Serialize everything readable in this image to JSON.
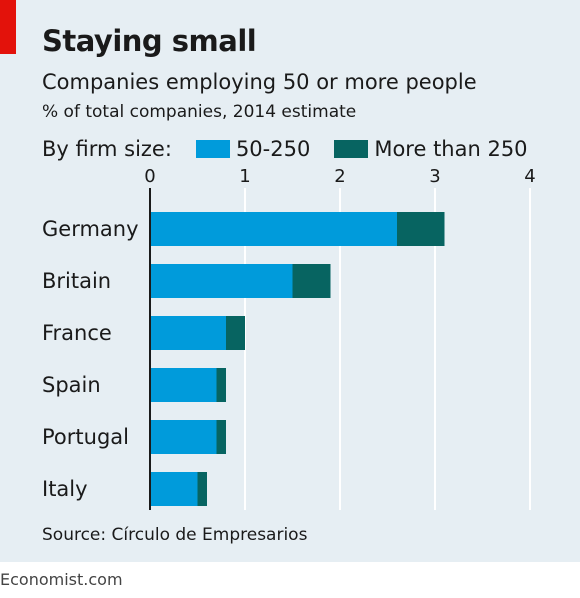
{
  "chart_data": {
    "type": "bar",
    "orientation": "horizontal",
    "stacked": true,
    "title": "Staying small",
    "subtitle": "Companies employing 50 or more people",
    "unit_label": "% of total companies, 2014 estimate",
    "legend_title": "By firm size:",
    "categories": [
      "Germany",
      "Britain",
      "France",
      "Spain",
      "Portugal",
      "Italy"
    ],
    "series": [
      {
        "name": "50-250",
        "color": "#009bdb",
        "values": [
          2.6,
          1.5,
          0.8,
          0.7,
          0.7,
          0.5
        ]
      },
      {
        "name": "More than 250",
        "color": "#076461",
        "values": [
          0.5,
          0.4,
          0.2,
          0.1,
          0.1,
          0.1
        ]
      }
    ],
    "xlim": [
      0,
      4
    ],
    "xticks": [
      "0",
      "1",
      "2",
      "3",
      "4"
    ],
    "grid": true,
    "legend_position": "top-left",
    "source": "Source: Círculo de Empresarios"
  },
  "footer": "Economist.com",
  "colors": {
    "accent": "#e3120b",
    "panel": "#e6eef3"
  }
}
